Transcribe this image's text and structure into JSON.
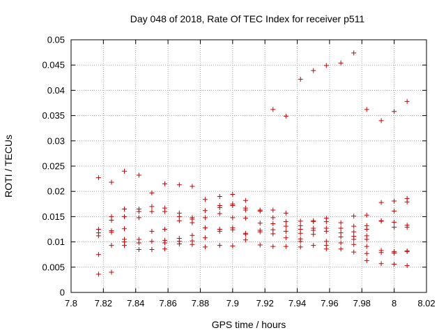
{
  "chart_data": {
    "type": "scatter",
    "title": "Day 048 of 2018, Rate Of TEC Index for receiver p511",
    "xlabel": "GPS time / hours",
    "ylabel": "ROTI / TECUs",
    "xlim": [
      7.8,
      8.02
    ],
    "ylim": [
      0,
      0.05
    ],
    "xticks": [
      7.8,
      7.82,
      7.84,
      7.86,
      7.88,
      7.9,
      7.92,
      7.94,
      7.96,
      7.98,
      8.0,
      8.02
    ],
    "xtick_labels": [
      "7.8",
      "7.82",
      "7.84",
      "7.86",
      "7.88",
      "7.9",
      "7.92",
      "7.94",
      "7.96",
      "7.98",
      "8",
      "8.02"
    ],
    "yticks": [
      0,
      0.005,
      0.01,
      0.015,
      0.02,
      0.025,
      0.03,
      0.035,
      0.04,
      0.045,
      0.05
    ],
    "ytick_labels": [
      "0",
      "0.005",
      "0.01",
      "0.015",
      "0.02",
      "0.025",
      "0.03",
      "0.035",
      "0.04",
      "0.045",
      "0.05"
    ],
    "grid": true,
    "marker": "+",
    "color": "#cc0000",
    "series": [
      {
        "name": "ROTI",
        "points": [
          [
            7.817,
            0.0227
          ],
          [
            7.817,
            0.0125
          ],
          [
            7.817,
            0.0118
          ],
          [
            7.817,
            0.0112
          ],
          [
            7.817,
            0.0075
          ],
          [
            7.817,
            0.0036
          ],
          [
            7.825,
            0.0218
          ],
          [
            7.825,
            0.015
          ],
          [
            7.825,
            0.0143
          ],
          [
            7.825,
            0.0122
          ],
          [
            7.825,
            0.0119
          ],
          [
            7.825,
            0.0093
          ],
          [
            7.825,
            0.004
          ],
          [
            7.833,
            0.024
          ],
          [
            7.833,
            0.0165
          ],
          [
            7.833,
            0.015
          ],
          [
            7.833,
            0.0126
          ],
          [
            7.833,
            0.0105
          ],
          [
            7.833,
            0.01
          ],
          [
            7.833,
            0.0093
          ],
          [
            7.842,
            0.0232
          ],
          [
            7.842,
            0.0165
          ],
          [
            7.842,
            0.016
          ],
          [
            7.842,
            0.0148
          ],
          [
            7.842,
            0.0105
          ],
          [
            7.842,
            0.0098
          ],
          [
            7.842,
            0.0085
          ],
          [
            7.85,
            0.0197
          ],
          [
            7.85,
            0.017
          ],
          [
            7.85,
            0.016
          ],
          [
            7.85,
            0.0121
          ],
          [
            7.85,
            0.0101
          ],
          [
            7.85,
            0.0085
          ],
          [
            7.858,
            0.0215
          ],
          [
            7.858,
            0.0167
          ],
          [
            7.858,
            0.016
          ],
          [
            7.858,
            0.0125
          ],
          [
            7.858,
            0.0103
          ],
          [
            7.858,
            0.0098
          ],
          [
            7.858,
            0.0086
          ],
          [
            7.867,
            0.0213
          ],
          [
            7.867,
            0.0157
          ],
          [
            7.867,
            0.015
          ],
          [
            7.867,
            0.0142
          ],
          [
            7.867,
            0.0107
          ],
          [
            7.867,
            0.0101
          ],
          [
            7.867,
            0.0096
          ],
          [
            7.875,
            0.021
          ],
          [
            7.875,
            0.0148
          ],
          [
            7.875,
            0.0145
          ],
          [
            7.875,
            0.0138
          ],
          [
            7.875,
            0.0113
          ],
          [
            7.875,
            0.0102
          ],
          [
            7.875,
            0.0095
          ],
          [
            7.883,
            0.0184
          ],
          [
            7.883,
            0.0162
          ],
          [
            7.883,
            0.0148
          ],
          [
            7.883,
            0.0128
          ],
          [
            7.883,
            0.0108
          ],
          [
            7.883,
            0.009
          ],
          [
            7.892,
            0.019
          ],
          [
            7.892,
            0.0172
          ],
          [
            7.892,
            0.0168
          ],
          [
            7.892,
            0.0156
          ],
          [
            7.892,
            0.0125
          ],
          [
            7.892,
            0.0121
          ],
          [
            7.892,
            0.0093
          ],
          [
            7.9,
            0.0194
          ],
          [
            7.9,
            0.0175
          ],
          [
            7.9,
            0.0172
          ],
          [
            7.9,
            0.0148
          ],
          [
            7.9,
            0.0128
          ],
          [
            7.9,
            0.0124
          ],
          [
            7.9,
            0.0092
          ],
          [
            7.908,
            0.0182
          ],
          [
            7.908,
            0.0167
          ],
          [
            7.908,
            0.0163
          ],
          [
            7.908,
            0.0147
          ],
          [
            7.908,
            0.0117
          ],
          [
            7.908,
            0.0115
          ],
          [
            7.908,
            0.0104
          ],
          [
            7.917,
            0.0163
          ],
          [
            7.917,
            0.0161
          ],
          [
            7.917,
            0.0137
          ],
          [
            7.917,
            0.0123
          ],
          [
            7.917,
            0.012
          ],
          [
            7.917,
            0.0094
          ],
          [
            7.925,
            0.0362
          ],
          [
            7.925,
            0.0163
          ],
          [
            7.925,
            0.0148
          ],
          [
            7.925,
            0.0136
          ],
          [
            7.925,
            0.0124
          ],
          [
            7.925,
            0.0116
          ],
          [
            7.925,
            0.0091
          ],
          [
            7.933,
            0.0349
          ],
          [
            7.933,
            0.0157
          ],
          [
            7.933,
            0.014
          ],
          [
            7.933,
            0.0131
          ],
          [
            7.933,
            0.0121
          ],
          [
            7.933,
            0.0108
          ],
          [
            7.933,
            0.0091
          ],
          [
            7.942,
            0.0422
          ],
          [
            7.942,
            0.0141
          ],
          [
            7.942,
            0.0132
          ],
          [
            7.942,
            0.0125
          ],
          [
            7.942,
            0.0117
          ],
          [
            7.942,
            0.0106
          ],
          [
            7.942,
            0.0101
          ],
          [
            7.942,
            0.009
          ],
          [
            7.95,
            0.0439
          ],
          [
            7.95,
            0.0142
          ],
          [
            7.95,
            0.014
          ],
          [
            7.95,
            0.0127
          ],
          [
            7.95,
            0.0123
          ],
          [
            7.95,
            0.0115
          ],
          [
            7.95,
            0.0093
          ],
          [
            7.958,
            0.0449
          ],
          [
            7.958,
            0.0147
          ],
          [
            7.958,
            0.014
          ],
          [
            7.958,
            0.0127
          ],
          [
            7.958,
            0.0121
          ],
          [
            7.958,
            0.0101
          ],
          [
            7.958,
            0.0093
          ],
          [
            7.958,
            0.0086
          ],
          [
            7.967,
            0.0454
          ],
          [
            7.967,
            0.0138
          ],
          [
            7.967,
            0.0127
          ],
          [
            7.967,
            0.0118
          ],
          [
            7.967,
            0.011
          ],
          [
            7.967,
            0.0098
          ],
          [
            7.967,
            0.0086
          ],
          [
            7.975,
            0.0474
          ],
          [
            7.975,
            0.0151
          ],
          [
            7.975,
            0.0131
          ],
          [
            7.975,
            0.012
          ],
          [
            7.975,
            0.0111
          ],
          [
            7.975,
            0.0105
          ],
          [
            7.975,
            0.0095
          ],
          [
            7.975,
            0.008
          ],
          [
            7.983,
            0.0362
          ],
          [
            7.983,
            0.0153
          ],
          [
            7.983,
            0.0132
          ],
          [
            7.983,
            0.0125
          ],
          [
            7.983,
            0.0112
          ],
          [
            7.983,
            0.0105
          ],
          [
            7.983,
            0.0091
          ],
          [
            7.983,
            0.0077
          ],
          [
            7.983,
            0.0063
          ],
          [
            7.992,
            0.034
          ],
          [
            7.992,
            0.0178
          ],
          [
            7.992,
            0.0142
          ],
          [
            7.992,
            0.0141
          ],
          [
            7.992,
            0.0083
          ],
          [
            7.992,
            0.0079
          ],
          [
            7.992,
            0.0057
          ],
          [
            8.0,
            0.0358
          ],
          [
            8.0,
            0.0181
          ],
          [
            8.0,
            0.0161
          ],
          [
            8.0,
            0.0139
          ],
          [
            8.0,
            0.0129
          ],
          [
            8.0,
            0.0081
          ],
          [
            8.0,
            0.0078
          ],
          [
            8.0,
            0.0056
          ],
          [
            8.008,
            0.0378
          ],
          [
            8.008,
            0.0186
          ],
          [
            8.008,
            0.0179
          ],
          [
            8.008,
            0.0133
          ],
          [
            8.008,
            0.0129
          ],
          [
            8.008,
            0.0082
          ],
          [
            8.008,
            0.0081
          ],
          [
            8.008,
            0.0053
          ]
        ]
      }
    ]
  }
}
